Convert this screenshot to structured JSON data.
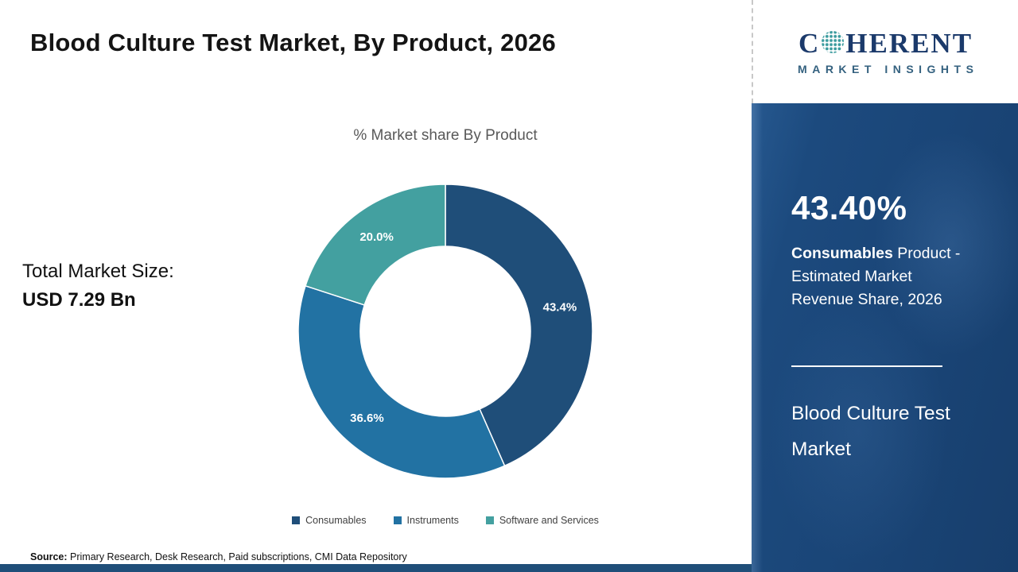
{
  "header": {
    "title": "Blood Culture Test Market, By Product, 2026"
  },
  "logo": {
    "prefix": "C",
    "suffix": "HERENT",
    "subtitle": "MARKET INSIGHTS",
    "globe_dot_color": "#3a9b9e",
    "text_color": "#1b3a6b"
  },
  "chart_data": {
    "type": "pie",
    "donut": true,
    "title": "% Market share By Product",
    "categories": [
      "Consumables",
      "Instruments",
      "Software and Services"
    ],
    "values": [
      43.4,
      36.6,
      20.0
    ],
    "labels": [
      "43.4%",
      "36.6%",
      "20.0%"
    ],
    "colors": [
      "#1f4e79",
      "#2272a3",
      "#43a0a0"
    ],
    "legend_position": "bottom",
    "start_angle_deg": 0,
    "direction": "clockwise"
  },
  "left_panel": {
    "total_label": "Total Market Size:",
    "total_value": "USD 7.29 Bn"
  },
  "sidebar": {
    "stat_value": "43.40%",
    "stat_bold": "Consumables",
    "stat_rest": " Product - Estimated Market Revenue Share, 2026",
    "market_name": "Blood Culture Test Market",
    "panel_color": "#1a4577"
  },
  "footer": {
    "source_label": "Source:",
    "source_text": " Primary Research, Desk Research, Paid subscriptions, CMI Data Repository"
  }
}
